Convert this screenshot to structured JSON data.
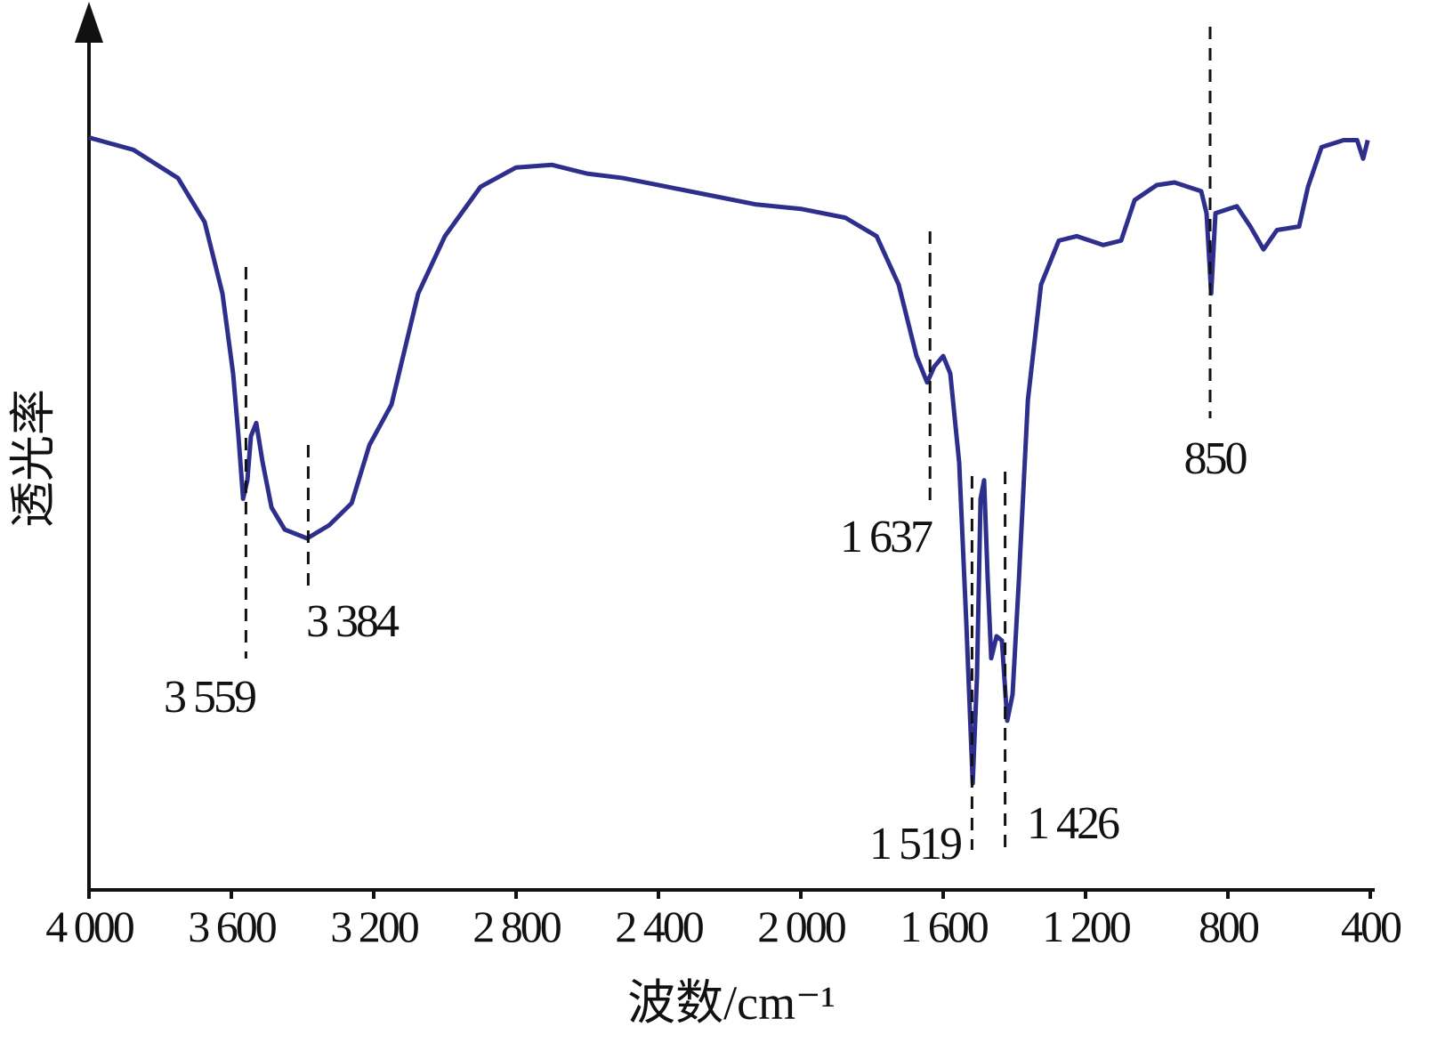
{
  "chart_data": {
    "type": "line",
    "x_label": "波数/cm⁻¹",
    "y_label": "透光率",
    "xlim": [
      4000,
      400
    ],
    "ylim": [
      0,
      100
    ],
    "xticks": [
      {
        "value": 4000,
        "label": "4 000"
      },
      {
        "value": 3600,
        "label": "3 600"
      },
      {
        "value": 3200,
        "label": "3 200"
      },
      {
        "value": 2800,
        "label": "2 800"
      },
      {
        "value": 2400,
        "label": "2 400"
      },
      {
        "value": 2000,
        "label": "2 000"
      },
      {
        "value": 1600,
        "label": "1 600"
      },
      {
        "value": 1200,
        "label": "1 200"
      },
      800,
      400
    ],
    "x": [
      4000,
      3875,
      3750,
      3675,
      3625,
      3595,
      3580,
      3567,
      3555,
      3545,
      3530,
      3512,
      3487,
      3450,
      3387,
      3325,
      3262,
      3212,
      3150,
      3075,
      3000,
      2900,
      2800,
      2700,
      2600,
      2500,
      2375,
      2250,
      2125,
      2000,
      1875,
      1787,
      1725,
      1675,
      1645,
      1625,
      1600,
      1580,
      1555,
      1535,
      1517,
      1505,
      1495,
      1485,
      1475,
      1465,
      1450,
      1435,
      1420,
      1405,
      1387,
      1362,
      1325,
      1275,
      1225,
      1150,
      1100,
      1062,
      1000,
      950,
      875,
      860,
      847,
      835,
      775,
      737,
      700,
      662,
      600,
      575,
      537,
      475,
      437,
      420,
      407
    ],
    "series": [
      {
        "color": "#2e2f8c",
        "values": [
          85.4,
          84.0,
          80.8,
          75.8,
          67.7,
          58.6,
          51.5,
          44.4,
          46.5,
          51.5,
          53.0,
          48.5,
          43.4,
          40.9,
          39.9,
          41.4,
          43.9,
          50.5,
          55.1,
          67.7,
          74.2,
          79.8,
          82.0,
          82.3,
          81.3,
          80.8,
          79.8,
          78.8,
          77.8,
          77.3,
          76.3,
          74.2,
          68.7,
          60.6,
          57.6,
          59.4,
          60.6,
          58.6,
          48.5,
          30.3,
          12.1,
          24.2,
          44.4,
          46.5,
          35.4,
          26.3,
          28.8,
          28.3,
          19.2,
          22.2,
          35.4,
          55.6,
          68.7,
          73.7,
          74.2,
          73.2,
          73.7,
          78.3,
          80.0,
          80.3,
          79.3,
          76.8,
          67.7,
          76.8,
          77.6,
          75.3,
          72.7,
          74.9,
          75.3,
          79.8,
          84.3,
          85.1,
          85.1,
          83.0,
          85.1
        ]
      }
    ],
    "annotations": [
      {
        "x": 3559,
        "label": "3 559"
      },
      {
        "x": 3384,
        "label": "3 384"
      },
      {
        "x": 1637,
        "label": "1 637"
      },
      {
        "x": 1519,
        "label": "1 519"
      },
      {
        "x": 1426,
        "label": "1 426"
      },
      {
        "x": 850,
        "label": "850"
      }
    ]
  }
}
